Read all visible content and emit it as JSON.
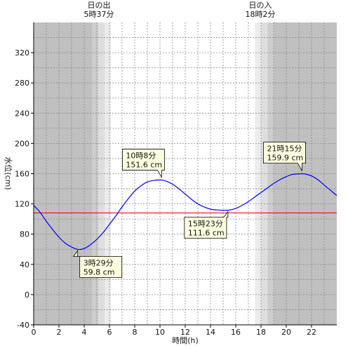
{
  "chart_data": {
    "type": "line",
    "xlabel": "時間(h)",
    "ylabel": "水位(cm)",
    "xlim": [
      0,
      24
    ],
    "ylim": [
      -40,
      360
    ],
    "x_ticks": [
      0,
      2,
      4,
      6,
      8,
      10,
      12,
      14,
      16,
      18,
      20,
      22
    ],
    "y_ticks": [
      -40,
      0,
      40,
      80,
      120,
      160,
      200,
      240,
      280,
      320
    ],
    "grid": true,
    "reference_line": {
      "value": 108,
      "color": "#e00000"
    },
    "sunrise": {
      "label": "日の出",
      "time": "5時37分",
      "hour": 5.617
    },
    "sunset": {
      "label": "日の入",
      "time": "18時2分",
      "hour": 18.033
    },
    "series": [
      {
        "color": "#0000ff",
        "x": [
          0,
          0.5,
          1,
          1.5,
          2,
          2.5,
          3,
          3.483,
          4,
          4.5,
          5,
          5.5,
          6,
          6.5,
          7,
          7.5,
          8,
          8.5,
          9,
          9.5,
          10.133,
          10.5,
          11,
          11.5,
          12,
          12.5,
          13,
          13.5,
          14,
          14.5,
          15.383,
          16,
          16.5,
          17,
          17.5,
          18,
          18.5,
          19,
          19.5,
          20,
          20.5,
          21.25,
          21.5,
          22,
          22.5,
          23,
          23.5,
          24
        ],
        "values": [
          118,
          109,
          97,
          86,
          76,
          68,
          63,
          59.8,
          61,
          66,
          73,
          82,
          93,
          104,
          116,
          127,
          137,
          144,
          149,
          151,
          151.6,
          150,
          146,
          140,
          133,
          126,
          120,
          116,
          113,
          112,
          111.6,
          114,
          118,
          123,
          129,
          135,
          141,
          147,
          152,
          156,
          159,
          159.9,
          159.5,
          157,
          152,
          145,
          138,
          131
        ]
      }
    ],
    "annotations": [
      {
        "time": "3時29分",
        "value": "59.8 cm",
        "x": 3.483,
        "y": 59.8
      },
      {
        "time": "10時8分",
        "value": "151.6 cm",
        "x": 10.133,
        "y": 151.6
      },
      {
        "time": "15時23分",
        "value": "111.6 cm",
        "x": 15.383,
        "y": 111.6
      },
      {
        "time": "21時15分",
        "value": "159.9 cm",
        "x": 21.25,
        "y": 159.9
      }
    ]
  }
}
